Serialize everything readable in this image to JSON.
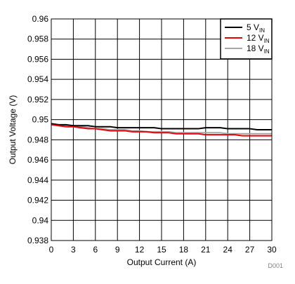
{
  "chart_data": {
    "type": "line",
    "xlabel": "Output Current (A)",
    "ylabel": "Output Voltage (V)",
    "xlim": [
      0,
      30
    ],
    "ylim": [
      0.938,
      0.96
    ],
    "xticks": [
      0,
      3,
      6,
      9,
      12,
      15,
      18,
      21,
      24,
      27,
      30
    ],
    "yticks": [
      0.938,
      0.94,
      0.942,
      0.944,
      0.946,
      0.948,
      0.95,
      0.952,
      0.954,
      0.956,
      0.958,
      0.96
    ],
    "ytick_labels": [
      "0.938",
      "0.94",
      "0.942",
      "0.944",
      "0.946",
      "0.948",
      "0.95",
      "0.952",
      "0.954",
      "0.956",
      "0.958",
      "0.96"
    ],
    "grid": true,
    "legend_position": "top-right",
    "series": [
      {
        "name": "5 V",
        "name_sub": "IN",
        "color": "#000000",
        "x": [
          0,
          1,
          2,
          3,
          4,
          5,
          6,
          7,
          8,
          9,
          10,
          11,
          12,
          13,
          14,
          15,
          16,
          17,
          18,
          19,
          20,
          21,
          22,
          23,
          24,
          25,
          26,
          27,
          28,
          29,
          30
        ],
        "y": [
          0.9496,
          0.9495,
          0.9495,
          0.9494,
          0.9494,
          0.9494,
          0.9493,
          0.9493,
          0.9493,
          0.9492,
          0.9492,
          0.9492,
          0.9492,
          0.9492,
          0.9492,
          0.9491,
          0.9491,
          0.9491,
          0.9491,
          0.9491,
          0.9491,
          0.9492,
          0.9492,
          0.9492,
          0.9491,
          0.9491,
          0.9491,
          0.9491,
          0.949,
          0.949,
          0.949
        ]
      },
      {
        "name": "12 V",
        "name_sub": "IN",
        "color": "#e8000b",
        "x": [
          0,
          1,
          2,
          3,
          4,
          5,
          6,
          7,
          8,
          9,
          10,
          11,
          12,
          13,
          14,
          15,
          16,
          17,
          18,
          19,
          20,
          21,
          22,
          23,
          24,
          25,
          26,
          27,
          28,
          29,
          30
        ],
        "y": [
          0.9495,
          0.9494,
          0.9493,
          0.9493,
          0.9492,
          0.9491,
          0.9491,
          0.949,
          0.9489,
          0.9489,
          0.9489,
          0.9488,
          0.9488,
          0.9488,
          0.9487,
          0.9487,
          0.9487,
          0.9486,
          0.9486,
          0.9486,
          0.9486,
          0.9485,
          0.9485,
          0.9485,
          0.9485,
          0.9485,
          0.9484,
          0.9484,
          0.9484,
          0.9484,
          0.9484
        ]
      },
      {
        "name": "18 V",
        "name_sub": "IN",
        "color": "#a6a6a6",
        "x": [
          0,
          1,
          2,
          3,
          4,
          5,
          6,
          7,
          8,
          9,
          10,
          11,
          12,
          13,
          14,
          15,
          16,
          17,
          18,
          19,
          20,
          21,
          22,
          23,
          24,
          25,
          26,
          27,
          28,
          29,
          30
        ],
        "y": [
          0.9496,
          0.9495,
          0.9494,
          0.9493,
          0.9493,
          0.9492,
          0.9491,
          0.9491,
          0.949,
          0.949,
          0.949,
          0.9489,
          0.9489,
          0.9488,
          0.9488,
          0.9488,
          0.9488,
          0.9487,
          0.9487,
          0.9487,
          0.9487,
          0.9487,
          0.9487,
          0.9487,
          0.9486,
          0.9486,
          0.9486,
          0.9486,
          0.9486,
          0.9486,
          0.9486
        ]
      }
    ]
  },
  "figure_id": "D001"
}
